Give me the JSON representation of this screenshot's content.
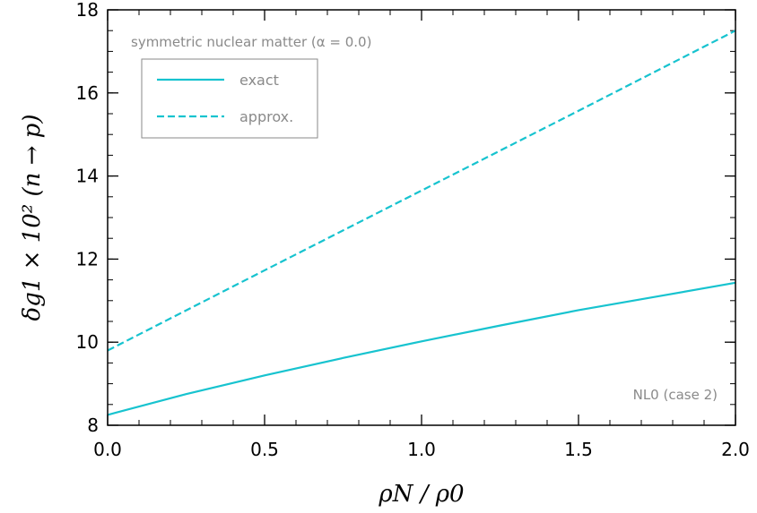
{
  "chart_data": {
    "type": "line",
    "xlabel": "ρN / ρ0",
    "ylabel": "δg1 × 10² (n → p)",
    "xlim": [
      0.0,
      2.0
    ],
    "ylim": [
      8,
      18
    ],
    "x_ticks": [
      "0.0",
      "0.5",
      "1.0",
      "1.5",
      "2.0"
    ],
    "y_ticks": [
      "8",
      "10",
      "12",
      "14",
      "16",
      "18"
    ],
    "grid": false,
    "legend_position": "top-left",
    "color": "#17c3cf",
    "annotation_top": "symmetric nuclear matter (α = 0.0)",
    "annotation_bottom": "NL0 (case 2)",
    "series": [
      {
        "name": "exact",
        "style": "solid",
        "x": [
          0.0,
          0.25,
          0.5,
          0.75,
          1.0,
          1.25,
          1.5,
          1.75,
          2.0
        ],
        "y": [
          8.25,
          8.75,
          9.2,
          9.62,
          10.02,
          10.4,
          10.77,
          11.1,
          11.43
        ]
      },
      {
        "name": "approx.",
        "style": "dashed",
        "x": [
          0.0,
          0.5,
          1.0,
          1.5,
          2.0
        ],
        "y": [
          9.8,
          11.73,
          13.65,
          15.57,
          17.5
        ]
      }
    ]
  }
}
